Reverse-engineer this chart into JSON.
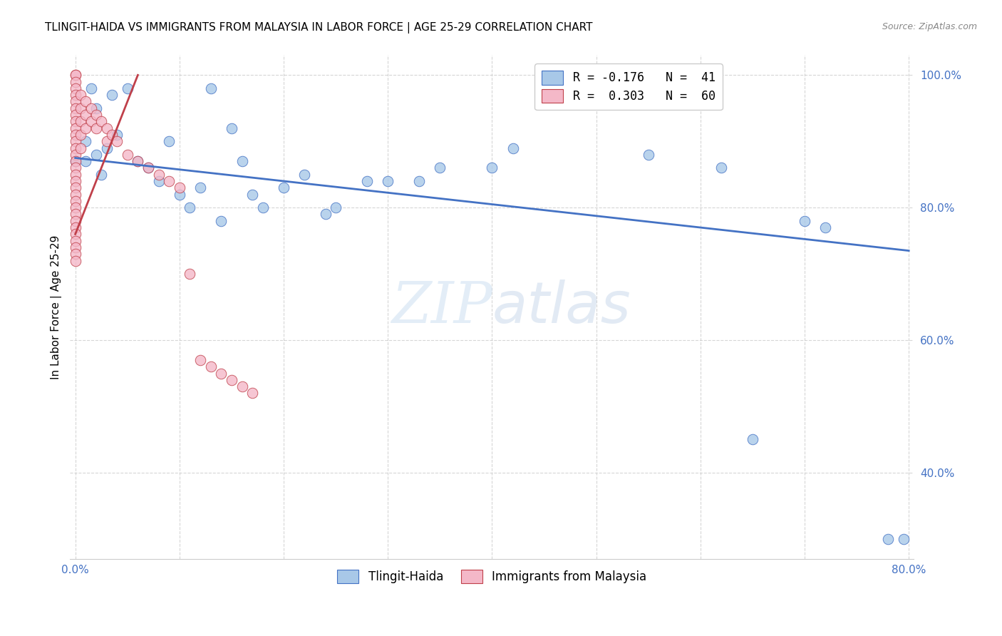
{
  "title": "TLINGIT-HAIDA VS IMMIGRANTS FROM MALAYSIA IN LABOR FORCE | AGE 25-29 CORRELATION CHART",
  "source": "Source: ZipAtlas.com",
  "ylabel": "In Labor Force | Age 25-29",
  "xlim": [
    -0.005,
    0.805
  ],
  "ylim": [
    0.27,
    1.03
  ],
  "xticks": [
    0.0,
    0.1,
    0.2,
    0.3,
    0.4,
    0.5,
    0.6,
    0.7,
    0.8
  ],
  "xticklabels": [
    "0.0%",
    "",
    "",
    "",
    "",
    "",
    "",
    "",
    "80.0%"
  ],
  "yticks": [
    0.4,
    0.6,
    0.8,
    1.0
  ],
  "yticklabels": [
    "40.0%",
    "60.0%",
    "80.0%",
    "100.0%"
  ],
  "legend1_label": "R = -0.176   N =  41",
  "legend2_label": "R =  0.303   N =  60",
  "legend_bottom_label1": "Tlingit-Haida",
  "legend_bottom_label2": "Immigrants from Malaysia",
  "blue_color": "#a8c8e8",
  "pink_color": "#f4b8c8",
  "trend_blue": "#4472c4",
  "trend_pink": "#c0404a",
  "background": "#ffffff",
  "tick_color": "#4472c4",
  "watermark_zip": "ZIP",
  "watermark_atlas": "atlas",
  "tlingit_x": [
    0.0,
    0.01,
    0.01,
    0.015,
    0.02,
    0.02,
    0.025,
    0.03,
    0.035,
    0.04,
    0.05,
    0.06,
    0.07,
    0.08,
    0.09,
    0.1,
    0.11,
    0.12,
    0.13,
    0.14,
    0.15,
    0.16,
    0.17,
    0.18,
    0.2,
    0.22,
    0.24,
    0.25,
    0.28,
    0.3,
    0.33,
    0.35,
    0.4,
    0.42,
    0.55,
    0.62,
    0.65,
    0.7,
    0.72,
    0.78,
    0.795
  ],
  "tlingit_y": [
    0.87,
    0.9,
    0.87,
    0.98,
    0.95,
    0.88,
    0.85,
    0.89,
    0.97,
    0.91,
    0.98,
    0.87,
    0.86,
    0.84,
    0.9,
    0.82,
    0.8,
    0.83,
    0.98,
    0.78,
    0.92,
    0.87,
    0.82,
    0.8,
    0.83,
    0.85,
    0.79,
    0.8,
    0.84,
    0.84,
    0.84,
    0.86,
    0.86,
    0.89,
    0.88,
    0.86,
    0.45,
    0.78,
    0.77,
    0.3,
    0.3
  ],
  "malaysia_x": [
    0.0,
    0.0,
    0.0,
    0.0,
    0.0,
    0.0,
    0.0,
    0.0,
    0.0,
    0.0,
    0.0,
    0.0,
    0.0,
    0.0,
    0.0,
    0.0,
    0.0,
    0.0,
    0.0,
    0.0,
    0.0,
    0.0,
    0.0,
    0.0,
    0.0,
    0.0,
    0.0,
    0.0,
    0.0,
    0.0,
    0.005,
    0.005,
    0.005,
    0.005,
    0.005,
    0.01,
    0.01,
    0.01,
    0.015,
    0.015,
    0.02,
    0.02,
    0.025,
    0.03,
    0.03,
    0.035,
    0.04,
    0.05,
    0.06,
    0.07,
    0.08,
    0.09,
    0.1,
    0.11,
    0.12,
    0.13,
    0.14,
    0.15,
    0.16,
    0.17
  ],
  "malaysia_y": [
    1.0,
    1.0,
    0.99,
    0.98,
    0.97,
    0.96,
    0.95,
    0.94,
    0.93,
    0.92,
    0.91,
    0.9,
    0.89,
    0.88,
    0.87,
    0.86,
    0.85,
    0.84,
    0.83,
    0.82,
    0.81,
    0.8,
    0.79,
    0.78,
    0.77,
    0.76,
    0.75,
    0.74,
    0.73,
    0.72,
    0.97,
    0.95,
    0.93,
    0.91,
    0.89,
    0.96,
    0.94,
    0.92,
    0.95,
    0.93,
    0.94,
    0.92,
    0.93,
    0.92,
    0.9,
    0.91,
    0.9,
    0.88,
    0.87,
    0.86,
    0.85,
    0.84,
    0.83,
    0.7,
    0.57,
    0.56,
    0.55,
    0.54,
    0.53,
    0.52
  ],
  "blue_trend_x": [
    0.0,
    0.8
  ],
  "blue_trend_y": [
    0.875,
    0.735
  ],
  "pink_trend_x": [
    0.0,
    0.06
  ],
  "pink_trend_y": [
    0.76,
    1.0
  ]
}
